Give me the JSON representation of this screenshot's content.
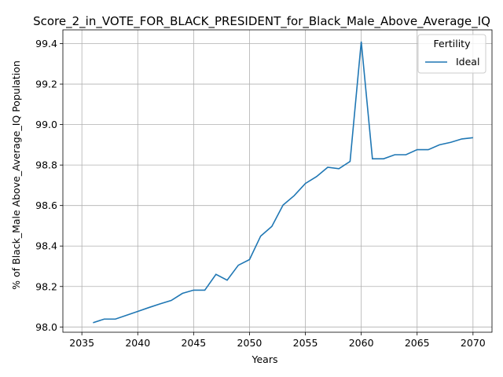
{
  "chart_data": {
    "type": "line",
    "title": "Score_2_in_VOTE_FOR_BLACK_PRESIDENT_for_Black_Male_Above_Average_IQ",
    "xlabel": "Years",
    "ylabel": "% of Black_Male Above_Average_IQ Population",
    "xlim": [
      2033.3,
      2071.7
    ],
    "ylim": [
      97.974,
      99.468
    ],
    "xticks": [
      2035,
      2040,
      2045,
      2050,
      2055,
      2060,
      2065,
      2070
    ],
    "yticks": [
      98.0,
      98.2,
      98.4,
      98.6,
      98.8,
      99.0,
      99.2,
      99.4
    ],
    "grid": true,
    "legend": {
      "title": "Fertility",
      "placement": "top-right"
    },
    "colors": {
      "series": "#1f77b4"
    },
    "x": [
      2036,
      2037,
      2038,
      2039,
      2040,
      2041,
      2042,
      2043,
      2044,
      2045,
      2046,
      2047,
      2048,
      2049,
      2050,
      2051,
      2052,
      2053,
      2054,
      2055,
      2056,
      2057,
      2058,
      2059,
      2060,
      2061,
      2062,
      2063,
      2064,
      2065,
      2066,
      2067,
      2068,
      2069,
      2070
    ],
    "series": [
      {
        "name": "Ideal",
        "values": [
          98.021,
          98.039,
          98.039,
          98.058,
          98.077,
          98.096,
          98.114,
          98.131,
          98.166,
          98.182,
          98.182,
          98.26,
          98.231,
          98.305,
          98.333,
          98.449,
          98.497,
          98.602,
          98.649,
          98.709,
          98.743,
          98.789,
          98.782,
          98.818,
          99.41,
          98.831,
          98.831,
          98.851,
          98.851,
          98.876,
          98.876,
          98.9,
          98.912,
          98.929,
          98.935
        ]
      }
    ]
  }
}
